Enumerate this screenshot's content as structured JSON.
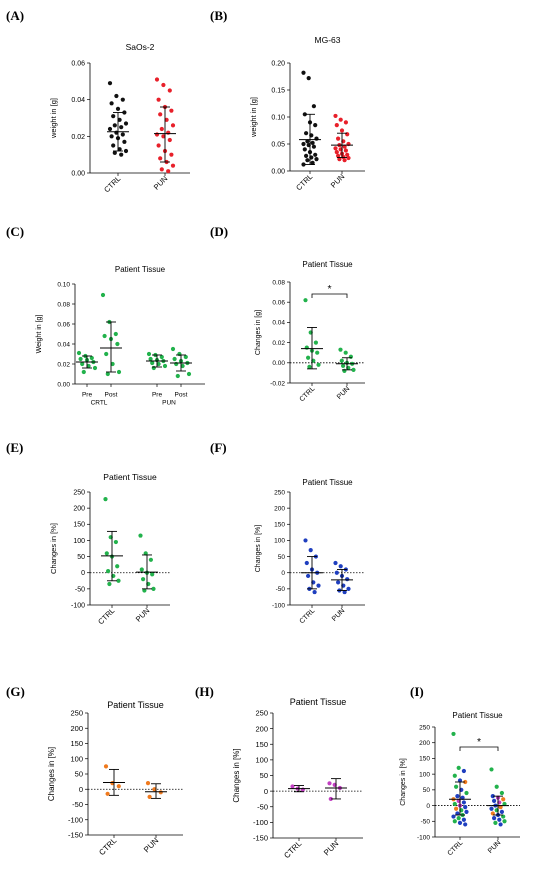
{
  "chart_data": [
    {
      "id": "A",
      "type": "scatter",
      "letter": "(A)",
      "title": "SaOs-2",
      "ylabel": "weight in [g]",
      "ylim": [
        0,
        0.06
      ],
      "yticks": [
        0,
        0.02,
        0.04,
        0.06
      ],
      "ytick_labels": [
        "0.00",
        "0.02",
        "0.04",
        "0.06"
      ],
      "categories": [
        "CTRL",
        "PUN"
      ],
      "series": [
        {
          "category": "CTRL",
          "color": "#111111",
          "mean": 0.0225,
          "sd_low": 0.012,
          "sd_high": 0.033,
          "points": [
            0.049,
            0.042,
            0.04,
            0.038,
            0.035,
            0.033,
            0.031,
            0.029,
            0.027,
            0.026,
            0.025,
            0.024,
            0.022,
            0.021,
            0.02,
            0.019,
            0.017,
            0.015,
            0.013,
            0.012,
            0.011,
            0.01
          ]
        },
        {
          "category": "PUN",
          "color": "#e8202a",
          "mean": 0.0215,
          "sd_low": 0.006,
          "sd_high": 0.036,
          "points": [
            0.051,
            0.048,
            0.045,
            0.04,
            0.036,
            0.034,
            0.032,
            0.029,
            0.026,
            0.024,
            0.022,
            0.021,
            0.02,
            0.018,
            0.015,
            0.012,
            0.01,
            0.008,
            0.006,
            0.004,
            0.002,
            0.001
          ]
        }
      ]
    },
    {
      "id": "B",
      "type": "scatter",
      "letter": "(B)",
      "title": "MG-63",
      "ylabel": "weight in [g]",
      "ylim": [
        0,
        0.2
      ],
      "yticks": [
        0,
        0.05,
        0.1,
        0.15,
        0.2
      ],
      "ytick_labels": [
        "0.00",
        "0.05",
        "0.10",
        "0.15",
        "0.20"
      ],
      "categories": [
        "CTRL",
        "PUN"
      ],
      "series": [
        {
          "category": "CTRL",
          "color": "#111111",
          "mean": 0.058,
          "sd_low": 0.012,
          "sd_high": 0.105,
          "points": [
            0.182,
            0.172,
            0.12,
            0.105,
            0.09,
            0.085,
            0.07,
            0.066,
            0.06,
            0.055,
            0.052,
            0.05,
            0.048,
            0.045,
            0.04,
            0.035,
            0.03,
            0.028,
            0.025,
            0.022,
            0.02,
            0.015,
            0.012
          ]
        },
        {
          "category": "PUN",
          "color": "#e8202a",
          "mean": 0.048,
          "sd_low": 0.025,
          "sd_high": 0.07,
          "points": [
            0.102,
            0.095,
            0.09,
            0.085,
            0.075,
            0.068,
            0.06,
            0.055,
            0.05,
            0.048,
            0.045,
            0.042,
            0.04,
            0.038,
            0.035,
            0.032,
            0.03,
            0.028,
            0.026,
            0.024,
            0.022,
            0.02
          ]
        }
      ]
    },
    {
      "id": "C",
      "type": "scatter",
      "letter": "(C)",
      "title": "Patient Tissue",
      "ylabel": "Weight in [g]",
      "ylim": [
        0,
        0.1
      ],
      "yticks": [
        0,
        0.02,
        0.04,
        0.06,
        0.08,
        0.1
      ],
      "ytick_labels": [
        "0.00",
        "0.02",
        "0.04",
        "0.06",
        "0.08",
        "0.10"
      ],
      "categories": [
        "Pre",
        "Post",
        "Pre",
        "Post"
      ],
      "groups": [
        "CRTL",
        "PUN"
      ],
      "series": [
        {
          "category": "Pre",
          "color": "#22b24c",
          "mean": 0.022,
          "sd_low": 0.016,
          "sd_high": 0.028,
          "points": [
            0.031,
            0.028,
            0.026,
            0.025,
            0.024,
            0.022,
            0.02,
            0.018,
            0.016,
            0.012
          ]
        },
        {
          "category": "Post",
          "color": "#22b24c",
          "mean": 0.036,
          "sd_low": 0.012,
          "sd_high": 0.062,
          "points": [
            0.089,
            0.062,
            0.05,
            0.048,
            0.045,
            0.04,
            0.03,
            0.02,
            0.012,
            0.01
          ]
        },
        {
          "category": "Pre",
          "color": "#22b24c",
          "mean": 0.023,
          "sd_low": 0.017,
          "sd_high": 0.029,
          "points": [
            0.03,
            0.029,
            0.027,
            0.025,
            0.024,
            0.023,
            0.021,
            0.02,
            0.018,
            0.016
          ]
        },
        {
          "category": "Post",
          "color": "#22b24c",
          "mean": 0.021,
          "sd_low": 0.013,
          "sd_high": 0.029,
          "points": [
            0.035,
            0.03,
            0.027,
            0.025,
            0.023,
            0.021,
            0.02,
            0.018,
            0.01,
            0.008
          ]
        }
      ]
    },
    {
      "id": "D",
      "type": "scatter",
      "letter": "(D)",
      "title": "Patient Tissue",
      "ylabel": "Changes in [g]",
      "ylim": [
        -0.02,
        0.08
      ],
      "yticks": [
        -0.02,
        0,
        0.02,
        0.04,
        0.06,
        0.08
      ],
      "ytick_labels": [
        "-0.02",
        "0.00",
        "0.02",
        "0.04",
        "0.06",
        "0.08"
      ],
      "categories": [
        "CTRL",
        "PUN"
      ],
      "zero_line": true,
      "significance": "*",
      "series": [
        {
          "category": "CTRL",
          "color": "#22b24c",
          "mean": 0.014,
          "sd_low": -0.006,
          "sd_high": 0.035,
          "points": [
            0.062,
            0.03,
            0.02,
            0.015,
            0.012,
            0.01,
            0.005,
            0.002,
            -0.002,
            -0.004
          ]
        },
        {
          "category": "PUN",
          "color": "#22b24c",
          "mean": -0.001,
          "sd_low": -0.007,
          "sd_high": 0.005,
          "points": [
            0.013,
            0.01,
            0.006,
            0.002,
            0.0,
            -0.001,
            -0.003,
            -0.005,
            -0.007,
            -0.008
          ]
        }
      ]
    },
    {
      "id": "E",
      "type": "scatter",
      "letter": "(E)",
      "title": "Patient Tissue",
      "ylabel": "Changes in [%]",
      "ylim": [
        -100,
        250
      ],
      "yticks": [
        -100,
        -50,
        0,
        50,
        100,
        150,
        200,
        250
      ],
      "ytick_labels": [
        "-100",
        "-50",
        "0",
        "50",
        "100",
        "150",
        "200",
        "250"
      ],
      "categories": [
        "CTRL",
        "PUN"
      ],
      "zero_line": true,
      "series": [
        {
          "category": "CTRL",
          "color": "#22b24c",
          "mean": 52,
          "sd_low": -25,
          "sd_high": 128,
          "points": [
            228,
            110,
            95,
            60,
            50,
            20,
            5,
            -10,
            -25,
            -35
          ]
        },
        {
          "category": "PUN",
          "color": "#22b24c",
          "mean": 2,
          "sd_low": -50,
          "sd_high": 55,
          "points": [
            115,
            60,
            40,
            10,
            0,
            -5,
            -20,
            -35,
            -50,
            -55
          ]
        }
      ]
    },
    {
      "id": "F",
      "type": "scatter",
      "letter": "(F)",
      "title": "Patient Tissue",
      "ylabel": "Changes in [%]",
      "ylim": [
        -100,
        250
      ],
      "yticks": [
        -100,
        -50,
        0,
        50,
        100,
        150,
        200,
        250
      ],
      "ytick_labels": [
        "-100",
        "-50",
        "0",
        "50",
        "100",
        "150",
        "200",
        "250"
      ],
      "categories": [
        "CTRL",
        "PUN"
      ],
      "zero_line": true,
      "series": [
        {
          "category": "CTRL",
          "color": "#1f3fbf",
          "mean": 0,
          "sd_low": -50,
          "sd_high": 50,
          "points": [
            100,
            70,
            50,
            30,
            10,
            0,
            -10,
            -30,
            -40,
            -50,
            -60
          ]
        },
        {
          "category": "PUN",
          "color": "#1f3fbf",
          "mean": -22,
          "sd_low": -55,
          "sd_high": 10,
          "points": [
            30,
            20,
            10,
            0,
            -10,
            -20,
            -30,
            -40,
            -50,
            -55,
            -60
          ]
        }
      ]
    },
    {
      "id": "G",
      "type": "scatter",
      "letter": "(G)",
      "title": "Patient Tissue",
      "ylabel": "Changes in [%]",
      "ylim": [
        -150,
        250
      ],
      "yticks": [
        -150,
        -100,
        -50,
        0,
        50,
        100,
        150,
        200,
        250
      ],
      "ytick_labels": [
        "-150",
        "-100",
        "-50",
        "0",
        "50",
        "100",
        "150",
        "200",
        "250"
      ],
      "categories": [
        "CTRL",
        "PUN"
      ],
      "zero_line": true,
      "series": [
        {
          "category": "CTRL",
          "color": "#f07a1e",
          "mean": 22,
          "sd_low": -20,
          "sd_high": 65,
          "points": [
            75,
            20,
            10,
            -15
          ]
        },
        {
          "category": "PUN",
          "color": "#f07a1e",
          "mean": -8,
          "sd_low": -30,
          "sd_high": 18,
          "points": [
            20,
            0,
            -10,
            -25
          ]
        }
      ]
    },
    {
      "id": "H",
      "type": "scatter",
      "letter": "(H)",
      "title": "Patient Tissue",
      "ylabel": "Changes in [%]",
      "ylim": [
        -150,
        250
      ],
      "yticks": [
        -150,
        -100,
        -50,
        0,
        50,
        100,
        150,
        200,
        250
      ],
      "ytick_labels": [
        "-150",
        "-100",
        "-50",
        "0",
        "50",
        "100",
        "150",
        "200",
        "250"
      ],
      "categories": [
        "CTRL",
        "PUN"
      ],
      "zero_line": true,
      "series": [
        {
          "category": "CTRL",
          "color": "#c23fc2",
          "mean": 8,
          "sd_low": -2,
          "sd_high": 18,
          "points": [
            15,
            8,
            5
          ]
        },
        {
          "category": "PUN",
          "color": "#c23fc2",
          "mean": 10,
          "sd_low": -25,
          "sd_high": 40,
          "points": [
            25,
            20,
            10,
            -25
          ]
        }
      ]
    },
    {
      "id": "I",
      "type": "scatter",
      "letter": "(I)",
      "title": "Patient Tissue",
      "ylabel": "Changes in [%]",
      "ylim": [
        -100,
        250
      ],
      "yticks": [
        -100,
        -50,
        0,
        50,
        100,
        150,
        200,
        250
      ],
      "ytick_labels": [
        "-100",
        "-50",
        "0",
        "50",
        "100",
        "150",
        "200",
        "250"
      ],
      "categories": [
        "CTRL",
        "PUN"
      ],
      "zero_line": true,
      "significance": "*",
      "series": [
        {
          "category": "CTRL",
          "color": "#1f3fbf",
          "mean": 20,
          "sd_low": -30,
          "sd_high": 75,
          "points": [
            228,
            120,
            110,
            95,
            80,
            75,
            60,
            50,
            40,
            30,
            25,
            20,
            15,
            10,
            5,
            0,
            -5,
            -10,
            -15,
            -20,
            -25,
            -30,
            -35,
            -40,
            -45,
            -50,
            -55,
            -60
          ],
          "point_colors": [
            "#22b24c",
            "#22b24c",
            "#1f3fbf",
            "#22b24c",
            "#1f3fbf",
            "#f07a1e",
            "#22b24c",
            "#1f3fbf",
            "#22b24c",
            "#1f3fbf",
            "#1f3fbf",
            "#f07a1e",
            "#c23fc2",
            "#1f3fbf",
            "#22b24c",
            "#c23fc2",
            "#1f3fbf",
            "#f07a1e",
            "#22b24c",
            "#1f3fbf",
            "#1f3fbf",
            "#22b24c",
            "#1f3fbf",
            "#22b24c",
            "#1f3fbf",
            "#22b24c",
            "#1f3fbf",
            "#1f3fbf"
          ]
        },
        {
          "category": "PUN",
          "color": "#1f3fbf",
          "mean": 0,
          "sd_low": -30,
          "sd_high": 30,
          "points": [
            115,
            60,
            40,
            30,
            25,
            20,
            15,
            10,
            5,
            0,
            -5,
            -10,
            -15,
            -20,
            -25,
            -30,
            -35,
            -40,
            -45,
            -50,
            -55,
            -60
          ],
          "point_colors": [
            "#22b24c",
            "#22b24c",
            "#22b24c",
            "#1f3fbf",
            "#c23fc2",
            "#f07a1e",
            "#1f3fbf",
            "#c23fc2",
            "#22b24c",
            "#1f3fbf",
            "#f07a1e",
            "#1f3fbf",
            "#22b24c",
            "#1f3fbf",
            "#f07a1e",
            "#1f3fbf",
            "#22b24c",
            "#1f3fbf",
            "#1f3fbf",
            "#22b24c",
            "#22b24c",
            "#1f3fbf"
          ]
        }
      ]
    }
  ]
}
